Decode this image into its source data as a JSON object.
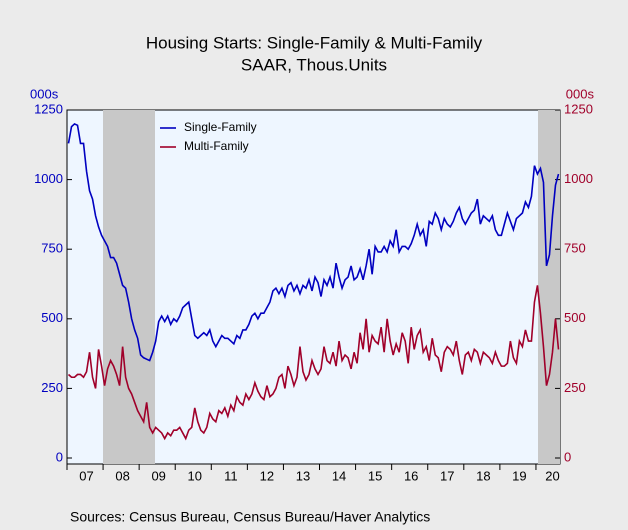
{
  "chart_data": {
    "type": "line",
    "title": "Housing Starts: Single-Family & Multi-Family",
    "subtitle": "SAAR, Thous.Units",
    "y_label": "000s",
    "y2_label": "000s",
    "source": "Sources:   Census Bureau, Census Bureau/Haver Analytics",
    "categories": [
      null,
      null,
      null,
      null,
      null,
      null,
      "07",
      null,
      null,
      null,
      null,
      null,
      null,
      null,
      null,
      null,
      null,
      null,
      "08",
      null,
      null,
      null,
      null,
      null,
      null,
      null,
      null,
      null,
      null,
      null,
      "09",
      null,
      null,
      null,
      null,
      null,
      null,
      null,
      null,
      null,
      null,
      null,
      "10",
      null,
      null,
      null,
      null,
      null,
      null,
      null,
      null,
      null,
      null,
      null,
      "11",
      null,
      null,
      null,
      null,
      null,
      null,
      null,
      null,
      null,
      null,
      null,
      "12",
      null,
      null,
      null,
      null,
      null,
      null,
      null,
      null,
      null,
      null,
      null,
      "13",
      null,
      null,
      null,
      null,
      null,
      null,
      null,
      null,
      null,
      null,
      null,
      "14",
      null,
      null,
      null,
      null,
      null,
      null,
      null,
      null,
      null,
      null,
      null,
      "15",
      null,
      null,
      null,
      null,
      null,
      null,
      null,
      null,
      null,
      null,
      null,
      "16",
      null,
      null,
      null,
      null,
      null,
      null,
      null,
      null,
      null,
      null,
      null,
      "17",
      null,
      null,
      null,
      null,
      null,
      null,
      null,
      null,
      null,
      null,
      null,
      "18",
      null,
      null,
      null,
      null,
      null,
      null,
      null,
      null,
      null,
      null,
      null,
      "19",
      null,
      null,
      null,
      null,
      null,
      null,
      null,
      null,
      null,
      null,
      "20",
      null,
      null
    ],
    "series": [
      {
        "name": "Single-Family",
        "color": "#0000c0",
        "values": [
          1130,
          1190,
          1200,
          1195,
          1130,
          1130,
          1030,
          960,
          930,
          870,
          830,
          800,
          780,
          760,
          720,
          720,
          700,
          660,
          620,
          610,
          560,
          500,
          460,
          430,
          370,
          360,
          355,
          350,
          380,
          420,
          490,
          510,
          490,
          510,
          480,
          500,
          490,
          510,
          540,
          550,
          560,
          500,
          440,
          430,
          440,
          450,
          440,
          460,
          420,
          400,
          420,
          440,
          430,
          430,
          420,
          410,
          440,
          430,
          460,
          460,
          480,
          510,
          520,
          500,
          520,
          520,
          540,
          560,
          600,
          610,
          590,
          610,
          580,
          620,
          630,
          600,
          620,
          590,
          620,
          610,
          640,
          600,
          650,
          630,
          580,
          640,
          620,
          650,
          610,
          700,
          650,
          610,
          640,
          650,
          690,
          640,
          650,
          680,
          640,
          690,
          750,
          660,
          760,
          740,
          740,
          760,
          740,
          780,
          760,
          820,
          740,
          760,
          760,
          750,
          770,
          800,
          840,
          800,
          820,
          760,
          850,
          840,
          880,
          860,
          820,
          860,
          840,
          830,
          850,
          880,
          900,
          860,
          840,
          860,
          880,
          890,
          930,
          840,
          870,
          860,
          850,
          870,
          820,
          800,
          800,
          840,
          880,
          850,
          820,
          860,
          870,
          880,
          920,
          900,
          940,
          1050,
          1020,
          1040,
          990,
          690,
          730,
          870,
          980,
          1020
        ]
      },
      {
        "name": "Multi-Family",
        "color": "#a0002a",
        "axis": "y2",
        "values": [
          300,
          290,
          290,
          300,
          300,
          290,
          310,
          380,
          290,
          250,
          390,
          330,
          260,
          320,
          350,
          330,
          300,
          260,
          400,
          290,
          250,
          230,
          200,
          170,
          150,
          130,
          200,
          110,
          90,
          110,
          100,
          90,
          70,
          90,
          80,
          100,
          100,
          110,
          90,
          70,
          100,
          110,
          180,
          130,
          100,
          90,
          110,
          160,
          140,
          130,
          170,
          160,
          180,
          150,
          190,
          170,
          220,
          200,
          190,
          230,
          210,
          230,
          270,
          240,
          220,
          210,
          260,
          220,
          230,
          250,
          290,
          300,
          250,
          330,
          300,
          260,
          290,
          400,
          310,
          280,
          300,
          350,
          320,
          300,
          320,
          400,
          350,
          340,
          380,
          330,
          420,
          350,
          370,
          360,
          320,
          380,
          340,
          450,
          390,
          500,
          380,
          440,
          420,
          410,
          470,
          380,
          500,
          420,
          370,
          410,
          380,
          450,
          420,
          340,
          470,
          390,
          440,
          460,
          380,
          400,
          350,
          430,
          370,
          360,
          310,
          380,
          400,
          390,
          370,
          420,
          350,
          300,
          370,
          380,
          350,
          390,
          380,
          340,
          380,
          370,
          360,
          340,
          380,
          350,
          330,
          330,
          340,
          420,
          360,
          340,
          420,
          400,
          460,
          420,
          420,
          560,
          620,
          520,
          400,
          260,
          300,
          380,
          500,
          390
        ]
      }
    ],
    "ylim": [
      0,
      1250
    ],
    "yticks": [
      0,
      250,
      500,
      750,
      1000,
      1250
    ],
    "y2lim": [
      0,
      1250
    ],
    "y2ticks": [
      0,
      250,
      500,
      750,
      1000,
      1250
    ],
    "legend": "upper left"
  }
}
